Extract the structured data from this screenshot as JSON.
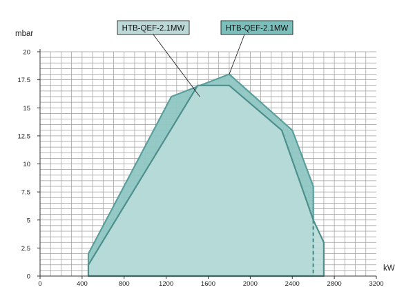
{
  "chart_data": {
    "type": "area",
    "xlabel": "kW",
    "ylabel": "mbar",
    "xlim": [
      0,
      3200
    ],
    "ylim": [
      0,
      20
    ],
    "x_ticks": [
      0,
      400,
      800,
      1200,
      1600,
      2000,
      2400,
      2800,
      3200
    ],
    "y_ticks": [
      0,
      2.5,
      5,
      7.5,
      10,
      12.5,
      15,
      17.5,
      20
    ],
    "x_ticks_label": [
      "0",
      "400",
      "800",
      "1200",
      "1600",
      "2000",
      "2400",
      "2800",
      "3200"
    ],
    "y_ticks_label": [
      "0",
      "2.5",
      "5",
      "7.5",
      "10",
      "12.5",
      "15",
      "17.5",
      "20"
    ],
    "grid": true,
    "series": [
      {
        "name": "HTB-QEF-2.1MW",
        "color": "#5a9e9c",
        "fill": "#8fc6c3",
        "x": [
          460,
          1250,
          1800,
          2400,
          2600,
          2600,
          460
        ],
        "y": [
          2,
          16,
          18,
          13,
          8,
          0,
          0
        ]
      },
      {
        "name": "HTB-QEF-2.1MW",
        "color": "#4d8f8c",
        "fill": "#b9dbd9",
        "x": [
          460,
          1500,
          1800,
          2300,
          2600,
          2700,
          2700,
          460
        ],
        "y": [
          1,
          17,
          17,
          13,
          5,
          3,
          0,
          0
        ]
      }
    ],
    "annotations": [
      {
        "text": "HTB-QEF-2.1MW",
        "box_color": "#bcd9d8",
        "target": [
          1520,
          16
        ]
      },
      {
        "text": "HTB-QEF-2.1MW",
        "box_color": "#7bbfbc",
        "target": [
          1800,
          18
        ]
      }
    ]
  }
}
